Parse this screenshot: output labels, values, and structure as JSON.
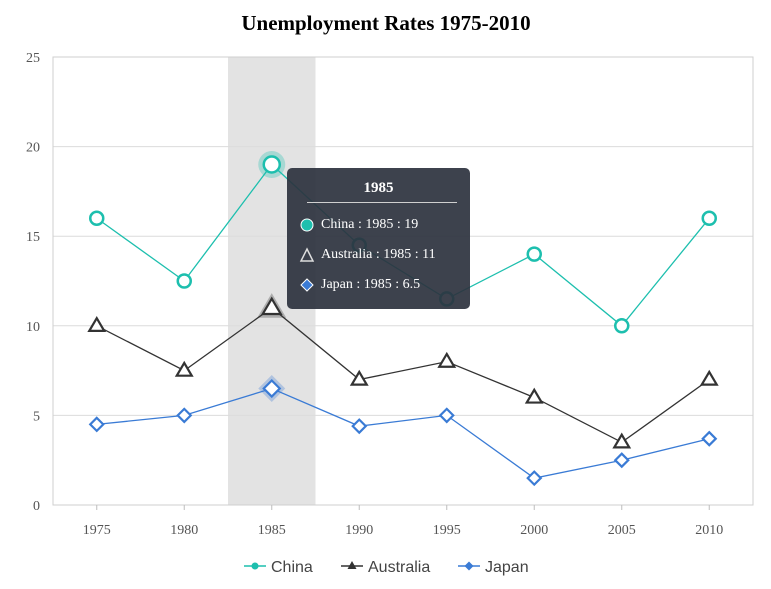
{
  "chart_data": {
    "type": "line",
    "title": "Unemployment Rates 1975-2010",
    "xlabel": "",
    "ylabel": "",
    "categories": [
      "1975",
      "1980",
      "1985",
      "1990",
      "1995",
      "2000",
      "2005",
      "2010"
    ],
    "ylim": [
      0,
      25
    ],
    "yticks": [
      "0",
      "5",
      "10",
      "15",
      "20",
      "25"
    ],
    "grid": true,
    "legend": "bottom",
    "series": [
      {
        "name": "China",
        "marker": "circle",
        "color": "#1dbfae",
        "values": [
          16,
          12.5,
          19,
          14.5,
          11.5,
          14,
          10,
          16
        ]
      },
      {
        "name": "Australia",
        "marker": "triangle",
        "color": "#333333",
        "values": [
          10,
          7.5,
          11,
          7,
          8,
          6,
          3.5,
          7
        ]
      },
      {
        "name": "Japan",
        "marker": "diamond",
        "color": "#3a7bd5",
        "values": [
          4.5,
          5,
          6.5,
          4.4,
          5,
          1.5,
          2.5,
          3.7
        ]
      }
    ],
    "highlight": {
      "category": "1985"
    },
    "tooltip": {
      "title": "1985",
      "rows": [
        {
          "text": "China : 1985 : 19",
          "marker": "circle",
          "color": "#1dbfae"
        },
        {
          "text": "Australia : 1985 : 11",
          "marker": "triangle",
          "color": "#333333"
        },
        {
          "text": "Japan : 1985 : 6.5",
          "marker": "diamond",
          "color": "#3a7bd5"
        }
      ]
    }
  }
}
